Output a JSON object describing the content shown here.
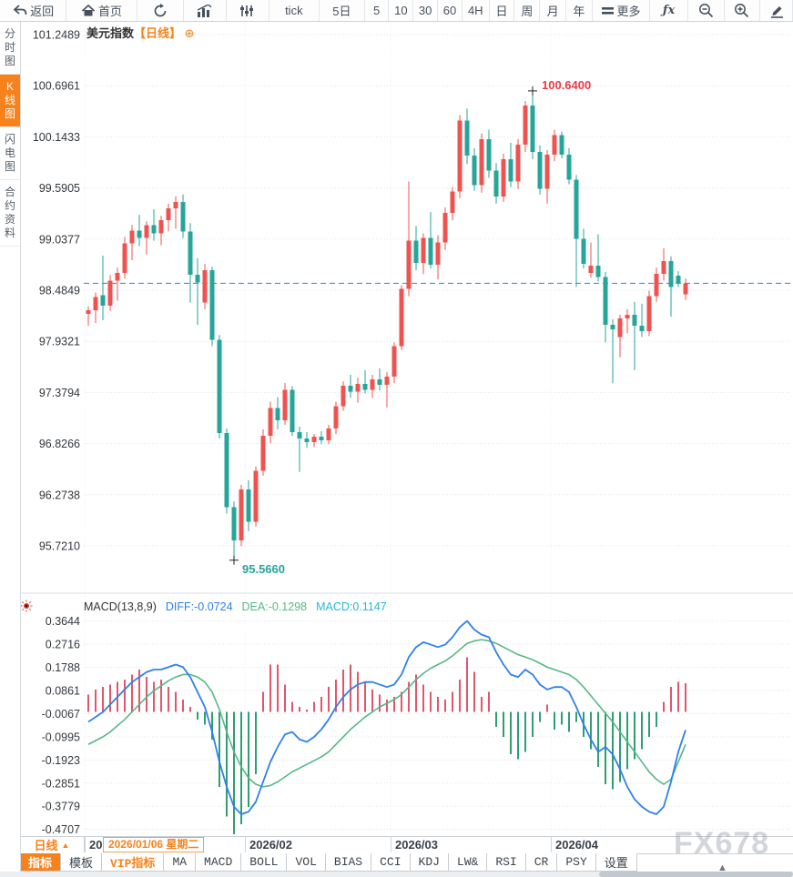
{
  "colors": {
    "accent_orange": "#f7821b",
    "candle_up": "#ef5350",
    "candle_down": "#26a69a",
    "hist_up": "#e2566b",
    "hist_down": "#2f9e71",
    "diff_line": "#2f80ed",
    "dea_line": "#56b787",
    "last_price_dash": "#1e88e5",
    "annotation_high": "#f23645",
    "annotation_low": "#26a69a",
    "grid": "#dfe3e8",
    "axis_text": "#33383d"
  },
  "toolbar": {
    "items": [
      {
        "id": "back",
        "label": "返回",
        "icon": "back-arrow-icon",
        "width": 74
      },
      {
        "id": "home",
        "label": "首页",
        "icon": "home-icon",
        "width": 78
      },
      {
        "id": "refresh",
        "label": "",
        "icon": "refresh-icon",
        "width": 52
      },
      {
        "id": "bar-chart",
        "label": "",
        "icon": "bar-chart-icon",
        "width": 47
      },
      {
        "id": "sliders",
        "label": "",
        "icon": "sliders-icon",
        "width": 47
      },
      {
        "id": "tick",
        "label": "tick",
        "icon": "",
        "width": 56
      },
      {
        "id": "range-5d",
        "label": "5日",
        "icon": "",
        "width": 50
      },
      {
        "id": "interval-5",
        "label": "5",
        "icon": "",
        "width": 27
      },
      {
        "id": "interval-10",
        "label": "10",
        "icon": "",
        "width": 27
      },
      {
        "id": "interval-30",
        "label": "30",
        "icon": "",
        "width": 27
      },
      {
        "id": "interval-60",
        "label": "60",
        "icon": "",
        "width": 27
      },
      {
        "id": "interval-4h",
        "label": "4H",
        "icon": "",
        "width": 30
      },
      {
        "id": "interval-day",
        "label": "日",
        "icon": "",
        "width": 28
      },
      {
        "id": "interval-week",
        "label": "周",
        "icon": "",
        "width": 28
      },
      {
        "id": "interval-month",
        "label": "月",
        "icon": "",
        "width": 29
      },
      {
        "id": "interval-year",
        "label": "年",
        "icon": "",
        "width": 29
      },
      {
        "id": "more",
        "label": "更多",
        "icon": "menu-icon",
        "width": 64
      },
      {
        "id": "fx",
        "label": "ƒx",
        "icon": "",
        "width": 42
      },
      {
        "id": "zoom-out",
        "label": "",
        "icon": "zoom-out-icon",
        "width": 40
      },
      {
        "id": "zoom-in",
        "label": "",
        "icon": "zoom-in-icon",
        "width": 40
      },
      {
        "id": "draw",
        "label": "",
        "icon": "pencil-icon",
        "width": 36
      }
    ]
  },
  "sidebar": {
    "items": [
      {
        "label": "分时图",
        "active": false
      },
      {
        "label": "K线图",
        "active": true
      },
      {
        "label": "闪电图",
        "active": false
      },
      {
        "label": "合约资料",
        "active": false
      }
    ]
  },
  "chart_header": {
    "title": "美元指数",
    "period": "【日线】",
    "add_icon": "⊕"
  },
  "chart_data": {
    "type": "candlestick",
    "title": "美元指数 日线 (US Dollar Index, daily)",
    "main_panel": {
      "y_ticks": [
        "101.2489",
        "100.6961",
        "100.1433",
        "99.5905",
        "99.0377",
        "98.4849",
        "97.9321",
        "97.3794",
        "96.8266",
        "96.2738",
        "95.7210"
      ],
      "last_price": 98.56,
      "high_annotation": {
        "label": "100.6400",
        "value": 100.64,
        "index": 61
      },
      "low_annotation": {
        "label": "95.5660",
        "value": 95.566,
        "index": 20
      },
      "candles": [
        [
          98.23,
          98.31,
          98.1,
          98.27
        ],
        [
          98.27,
          98.46,
          98.13,
          98.41
        ],
        [
          98.43,
          98.86,
          98.16,
          98.32
        ],
        [
          98.32,
          98.65,
          98.26,
          98.59
        ],
        [
          98.59,
          98.73,
          98.37,
          98.67
        ],
        [
          98.67,
          99.06,
          98.61,
          98.99
        ],
        [
          98.99,
          99.19,
          98.81,
          99.13
        ],
        [
          99.13,
          99.3,
          98.96,
          99.05
        ],
        [
          99.05,
          99.23,
          98.87,
          99.19
        ],
        [
          99.19,
          99.36,
          99.02,
          99.1
        ],
        [
          99.1,
          99.29,
          98.97,
          99.24
        ],
        [
          99.24,
          99.42,
          99.12,
          99.37
        ],
        [
          99.37,
          99.5,
          99.15,
          99.44
        ],
        [
          99.44,
          99.52,
          99.05,
          99.12
        ],
        [
          99.12,
          99.21,
          98.35,
          98.65
        ],
        [
          98.65,
          98.83,
          98.11,
          98.57
        ],
        [
          98.35,
          98.77,
          98.28,
          98.7
        ],
        [
          98.7,
          98.74,
          97.88,
          97.95
        ],
        [
          97.95,
          98.0,
          96.88,
          96.94
        ],
        [
          96.94,
          96.99,
          96.07,
          96.14
        ],
        [
          96.14,
          96.2,
          95.566,
          95.78
        ],
        [
          95.78,
          96.38,
          95.72,
          96.33
        ],
        [
          96.33,
          96.43,
          95.88,
          95.98
        ],
        [
          95.98,
          96.58,
          95.93,
          96.53
        ],
        [
          96.53,
          96.98,
          96.48,
          96.91
        ],
        [
          96.91,
          97.28,
          96.83,
          97.21
        ],
        [
          97.21,
          97.33,
          96.98,
          97.08
        ],
        [
          97.08,
          97.48,
          97.03,
          97.41
        ],
        [
          97.41,
          97.45,
          96.91,
          96.95
        ],
        [
          96.95,
          97.01,
          96.52,
          96.88
        ],
        [
          96.88,
          96.95,
          96.78,
          96.84
        ],
        [
          96.84,
          96.93,
          96.79,
          96.9
        ],
        [
          96.9,
          96.96,
          96.82,
          96.86
        ],
        [
          96.86,
          97.03,
          96.82,
          96.99
        ],
        [
          96.99,
          97.28,
          96.93,
          97.23
        ],
        [
          97.23,
          97.5,
          97.18,
          97.45
        ],
        [
          97.45,
          97.57,
          97.32,
          97.39
        ],
        [
          97.39,
          97.54,
          97.27,
          97.47
        ],
        [
          97.47,
          97.62,
          97.37,
          97.41
        ],
        [
          97.41,
          97.57,
          97.32,
          97.52
        ],
        [
          97.52,
          97.64,
          97.4,
          97.46
        ],
        [
          97.46,
          97.6,
          97.22,
          97.55
        ],
        [
          97.55,
          97.92,
          97.48,
          97.88
        ],
        [
          97.88,
          98.54,
          97.84,
          98.5
        ],
        [
          98.5,
          99.66,
          98.42,
          99.02
        ],
        [
          99.02,
          99.18,
          98.7,
          98.78
        ],
        [
          98.78,
          99.1,
          98.66,
          99.05
        ],
        [
          99.05,
          99.33,
          98.72,
          98.76
        ],
        [
          98.76,
          99.08,
          98.6,
          99.0
        ],
        [
          99.0,
          99.38,
          98.92,
          99.32
        ],
        [
          99.32,
          99.6,
          99.24,
          99.55
        ],
        [
          99.55,
          100.38,
          99.48,
          100.32
        ],
        [
          100.32,
          100.45,
          99.85,
          99.94
        ],
        [
          99.94,
          100.02,
          99.56,
          99.62
        ],
        [
          99.62,
          100.18,
          99.54,
          100.12
        ],
        [
          100.12,
          100.22,
          99.7,
          99.78
        ],
        [
          99.78,
          99.86,
          99.42,
          99.5
        ],
        [
          99.5,
          99.96,
          99.44,
          99.9
        ],
        [
          99.9,
          100.08,
          99.6,
          99.66
        ],
        [
          99.66,
          100.12,
          99.58,
          100.06
        ],
        [
          100.06,
          100.53,
          99.98,
          100.48
        ],
        [
          100.48,
          100.64,
          99.9,
          99.98
        ],
        [
          99.98,
          100.05,
          99.52,
          99.58
        ],
        [
          99.58,
          100.0,
          99.42,
          99.95
        ],
        [
          99.95,
          100.22,
          99.88,
          100.16
        ],
        [
          100.16,
          100.2,
          99.91,
          99.95
        ],
        [
          99.95,
          100.02,
          99.63,
          99.68
        ],
        [
          99.68,
          99.73,
          98.52,
          99.04
        ],
        [
          99.04,
          99.15,
          98.72,
          98.77
        ],
        [
          98.67,
          99.0,
          98.62,
          98.75
        ],
        [
          98.75,
          99.09,
          98.58,
          98.63
        ],
        [
          98.63,
          98.68,
          97.92,
          98.11
        ],
        [
          98.11,
          98.17,
          97.48,
          98.06
        ],
        [
          97.98,
          98.22,
          97.76,
          98.18
        ],
        [
          98.18,
          98.28,
          98.02,
          98.22
        ],
        [
          98.22,
          98.36,
          97.62,
          98.1
        ],
        [
          98.1,
          98.34,
          97.98,
          98.04
        ],
        [
          98.04,
          98.48,
          97.99,
          98.42
        ],
        [
          98.42,
          98.73,
          98.36,
          98.66
        ],
        [
          98.66,
          98.94,
          98.59,
          98.8
        ],
        [
          98.8,
          98.85,
          98.2,
          98.52
        ],
        [
          98.64,
          98.69,
          98.52,
          98.56
        ],
        [
          98.44,
          98.61,
          98.38,
          98.56
        ]
      ]
    },
    "macd_panel": {
      "params": "MACD(13,8,9)",
      "diff_value_label": "DIFF:-0.0724",
      "dea_value_label": "DEA:-0.1298",
      "macd_value_label": "MACD:0.1147",
      "y_ticks": [
        "0.3644",
        "0.2716",
        "0.1788",
        "0.0861",
        "-0.0067",
        "-0.0995",
        "-0.1923",
        "-0.2851",
        "-0.3779",
        "-0.4707"
      ],
      "hist": [
        0.07,
        0.09,
        0.1,
        0.11,
        0.12,
        0.13,
        0.15,
        0.17,
        0.14,
        0.12,
        0.13,
        0.1,
        0.08,
        0.05,
        0.02,
        -0.03,
        -0.05,
        -0.11,
        -0.3,
        -0.42,
        -0.49,
        -0.45,
        -0.38,
        -0.25,
        0.08,
        0.19,
        0.19,
        0.11,
        0.04,
        0.02,
        0.01,
        0.04,
        0.06,
        0.1,
        0.13,
        0.17,
        0.19,
        0.16,
        0.12,
        0.09,
        0.07,
        0.05,
        0.06,
        0.08,
        0.12,
        0.15,
        0.11,
        0.08,
        0.06,
        0.05,
        0.08,
        0.13,
        0.22,
        0.16,
        0.06,
        0.08,
        -0.06,
        -0.1,
        -0.17,
        -0.19,
        -0.16,
        -0.1,
        -0.04,
        0.03,
        -0.07,
        -0.05,
        -0.08,
        -0.04,
        -0.1,
        -0.15,
        -0.22,
        -0.29,
        -0.31,
        -0.28,
        -0.23,
        -0.19,
        -0.15,
        -0.1,
        -0.06,
        0.04,
        0.1,
        0.12,
        0.115
      ],
      "diff": [
        -0.04,
        -0.02,
        0.0,
        0.03,
        0.06,
        0.09,
        0.12,
        0.14,
        0.16,
        0.17,
        0.17,
        0.18,
        0.19,
        0.18,
        0.14,
        0.08,
        0.02,
        -0.08,
        -0.2,
        -0.3,
        -0.38,
        -0.41,
        -0.4,
        -0.36,
        -0.28,
        -0.2,
        -0.14,
        -0.09,
        -0.08,
        -0.11,
        -0.12,
        -0.1,
        -0.07,
        -0.03,
        0.02,
        0.06,
        0.09,
        0.11,
        0.12,
        0.12,
        0.11,
        0.1,
        0.11,
        0.15,
        0.22,
        0.26,
        0.28,
        0.27,
        0.26,
        0.27,
        0.3,
        0.34,
        0.365,
        0.33,
        0.31,
        0.3,
        0.24,
        0.19,
        0.15,
        0.14,
        0.17,
        0.15,
        0.11,
        0.09,
        0.1,
        0.1,
        0.08,
        0.02,
        -0.05,
        -0.11,
        -0.16,
        -0.14,
        -0.17,
        -0.23,
        -0.3,
        -0.35,
        -0.38,
        -0.4,
        -0.41,
        -0.38,
        -0.28,
        -0.16,
        -0.0724
      ],
      "dea": [
        -0.13,
        -0.115,
        -0.1,
        -0.08,
        -0.055,
        -0.03,
        0.0,
        0.03,
        0.06,
        0.085,
        0.105,
        0.125,
        0.14,
        0.15,
        0.15,
        0.14,
        0.12,
        0.08,
        0.01,
        -0.08,
        -0.16,
        -0.22,
        -0.265,
        -0.29,
        -0.3,
        -0.295,
        -0.28,
        -0.26,
        -0.24,
        -0.225,
        -0.21,
        -0.195,
        -0.18,
        -0.16,
        -0.13,
        -0.1,
        -0.07,
        -0.045,
        -0.02,
        0.0,
        0.02,
        0.035,
        0.05,
        0.07,
        0.1,
        0.13,
        0.155,
        0.175,
        0.19,
        0.205,
        0.225,
        0.25,
        0.275,
        0.285,
        0.29,
        0.285,
        0.275,
        0.26,
        0.245,
        0.23,
        0.22,
        0.21,
        0.195,
        0.18,
        0.17,
        0.16,
        0.15,
        0.13,
        0.1,
        0.065,
        0.03,
        -0.005,
        -0.04,
        -0.08,
        -0.12,
        -0.16,
        -0.2,
        -0.24,
        -0.27,
        -0.29,
        -0.27,
        -0.2,
        -0.1298
      ]
    },
    "x_axis_months": [
      {
        "label": "2026/01",
        "index": 0
      },
      {
        "label": "2026/02",
        "index": 22
      },
      {
        "label": "2026/03",
        "index": 42
      },
      {
        "label": "2026/04",
        "index": 64
      }
    ]
  },
  "timeline": {
    "period_button": "日线",
    "period_arrow": "▲",
    "crosshair_date": "2026/01/06 星期二"
  },
  "bottom_toolbar": {
    "tabs": [
      {
        "label": "指标",
        "style": "active"
      },
      {
        "label": "模板",
        "style": ""
      },
      {
        "label": "VIP指标",
        "style": "vip"
      },
      {
        "label": "MA",
        "style": ""
      },
      {
        "label": "MACD",
        "style": ""
      },
      {
        "label": "BOLL",
        "style": ""
      },
      {
        "label": "VOL",
        "style": ""
      },
      {
        "label": "BIAS",
        "style": ""
      },
      {
        "label": "CCI",
        "style": ""
      },
      {
        "label": "KDJ",
        "style": ""
      },
      {
        "label": "LW&",
        "style": ""
      },
      {
        "label": "RSI",
        "style": ""
      },
      {
        "label": "CR",
        "style": ""
      },
      {
        "label": "PSY",
        "style": ""
      },
      {
        "label": "设置",
        "style": ""
      }
    ]
  },
  "watermark": "FX678",
  "scrollbar": {
    "arrow": "▲"
  }
}
